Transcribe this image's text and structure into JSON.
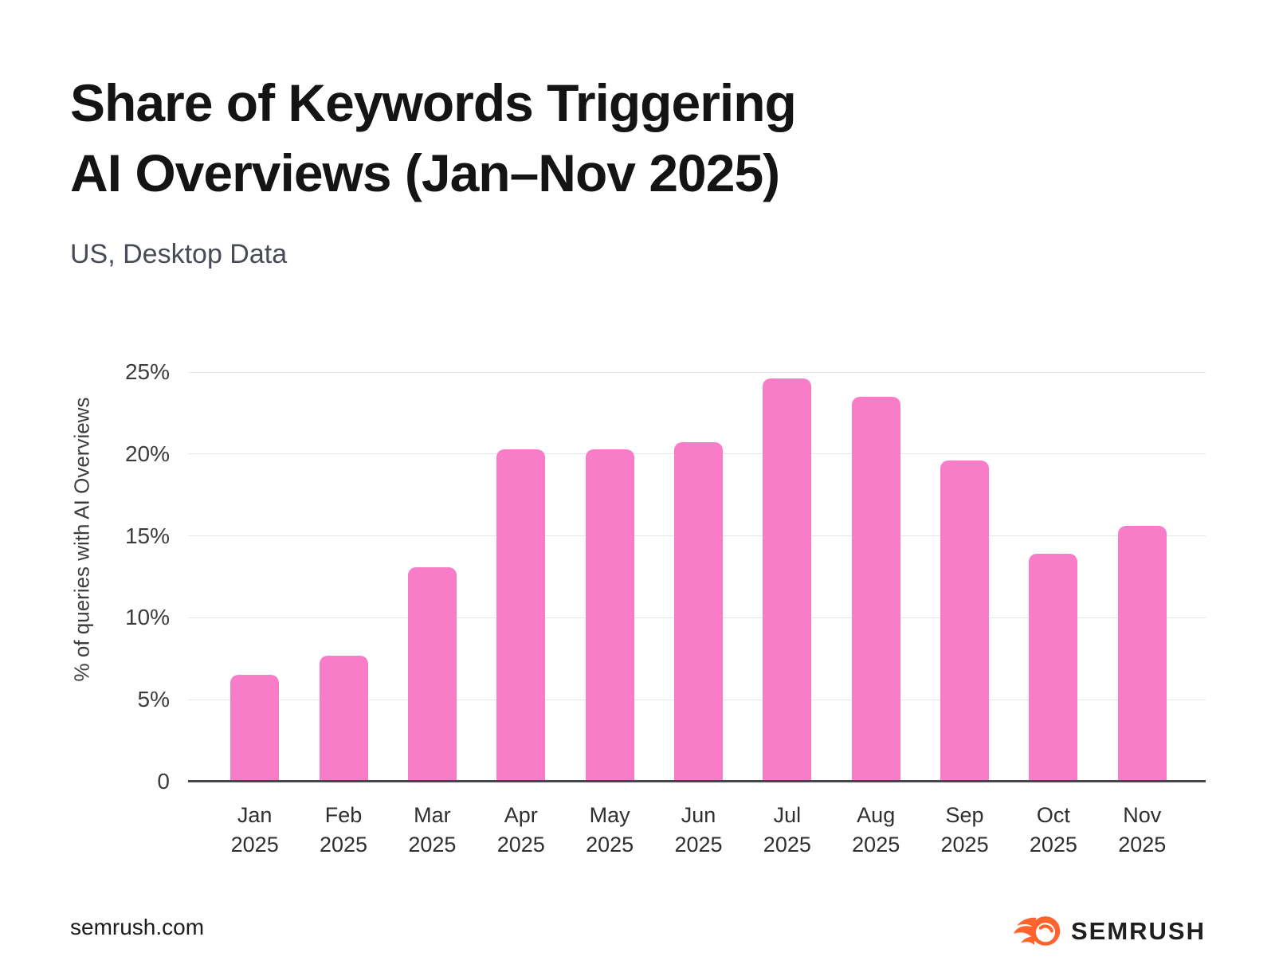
{
  "header": {
    "title": "Share of Keywords Triggering\nAI Overviews (Jan–Nov 2025)",
    "subtitle": "US, Desktop Data"
  },
  "chart_data": {
    "type": "bar",
    "title": "Share of Keywords Triggering AI Overviews (Jan–Nov 2025)",
    "subtitle": "US, Desktop Data",
    "categories": [
      "Jan 2025",
      "Feb 2025",
      "Mar 2025",
      "Apr 2025",
      "May 2025",
      "Jun 2025",
      "Jul 2025",
      "Aug 2025",
      "Sep 2025",
      "Oct 2025",
      "Nov 2025"
    ],
    "values": [
      6.5,
      7.7,
      13.1,
      20.3,
      20.3,
      20.7,
      24.6,
      23.5,
      19.6,
      13.9,
      15.6
    ],
    "unit": "%",
    "xlabel": "",
    "ylabel": "% of queries with AI Overviews",
    "ylim": [
      0,
      25
    ],
    "yticks": [
      {
        "value": 25,
        "label": "25%"
      },
      {
        "value": 20,
        "label": "20%"
      },
      {
        "value": 15,
        "label": "15%"
      },
      {
        "value": 10,
        "label": "10%"
      },
      {
        "value": 5,
        "label": "5%"
      },
      {
        "value": 0,
        "label": "0"
      }
    ],
    "grid": true,
    "legend": "none"
  },
  "colors": {
    "bar_pink": "#F97CC9",
    "brand_orange": "#FF642D",
    "title_text": "#141414",
    "subtitle_text": "#474B55",
    "gridline": "#E6E6EA",
    "axis_line": "#45454B"
  },
  "footer": {
    "site": "semrush.com",
    "brand": "SEMRUSH",
    "logo_icon": "semrush-fireball-icon"
  }
}
